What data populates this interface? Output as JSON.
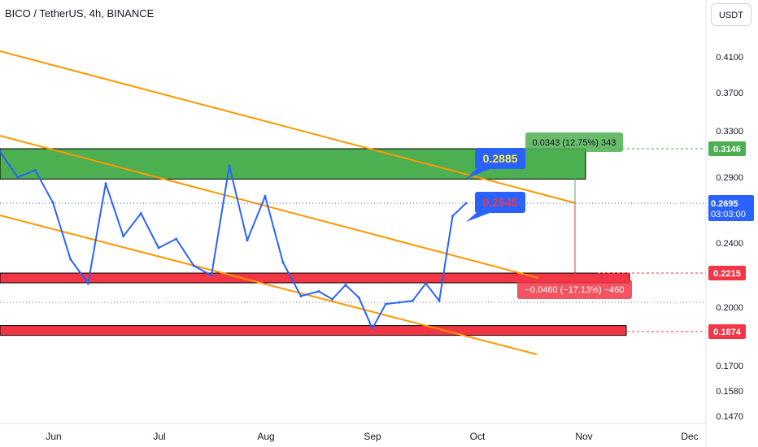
{
  "header": {
    "title": "BICO / TetherUS, 4h, BINANCE"
  },
  "currency_button": "USDT",
  "chart_data": {
    "type": "line",
    "series": [
      {
        "x": [
          "Jun",
          "Jun",
          "Jun",
          "Jun",
          "Jun",
          "Jun",
          "Jul",
          "Jul",
          "Jul",
          "Jul",
          "Jul",
          "Jul",
          "Aug",
          "Aug",
          "Aug",
          "Aug",
          "Aug",
          "Aug",
          "Sep",
          "Sep",
          "Sep",
          "Sep",
          "Sep",
          "Sep",
          "Sep",
          "Sep",
          "Sep",
          "Sep",
          "Sep",
          "Oct"
        ],
        "values": [
          0.312,
          0.29,
          0.296,
          0.27,
          0.23,
          0.215,
          0.285,
          0.245,
          0.262,
          0.237,
          0.243,
          0.226,
          0.22,
          0.3,
          0.242,
          0.275,
          0.228,
          0.207,
          0.21,
          0.205,
          0.214,
          0.206,
          0.189,
          0.202,
          0.203,
          0.204,
          0.215,
          0.204,
          0.26,
          0.2695
        ]
      }
    ],
    "y_ticks": [
      "0.4100",
      "0.3700",
      "0.3300",
      "0.2900",
      "0.2400",
      "0.2000",
      "0.1700",
      "0.1580",
      "0.1470"
    ],
    "x_ticks": [
      "Jun",
      "Jul",
      "Aug",
      "Sep",
      "Oct",
      "Nov",
      "Dec"
    ],
    "zones": [
      {
        "name": "resistance",
        "color": "#4caf50",
        "low": 0.2885,
        "high": 0.3146
      },
      {
        "name": "support-1",
        "color": "#f23645",
        "low": 0.218,
        "high": 0.2215
      },
      {
        "name": "support-2",
        "color": "#f23645",
        "low": 0.1874,
        "high": 0.1905
      }
    ],
    "channel_color": "#ff9800",
    "price_labels": [
      {
        "value": "0.3146",
        "color": "#4caf50"
      },
      {
        "value": "0.2215",
        "color": "#f23645"
      },
      {
        "value": "0.1874",
        "color": "#f23645"
      }
    ],
    "current_price": {
      "value": "0.2695",
      "countdown": "03:03:00",
      "color": "#2962ff"
    },
    "callouts": [
      {
        "text": "0.2885",
        "color": "#2962ff",
        "text_color": "#ffeb3b"
      },
      {
        "text": "0.2545",
        "color": "#2962ff",
        "text_color": "#f23645"
      }
    ],
    "measurements": [
      {
        "text": "0.0343 (12.75%) 343",
        "color": "#4caf50"
      },
      {
        "text": "−0.0460 (−17.13%) −460",
        "color": "#f23645"
      }
    ]
  }
}
